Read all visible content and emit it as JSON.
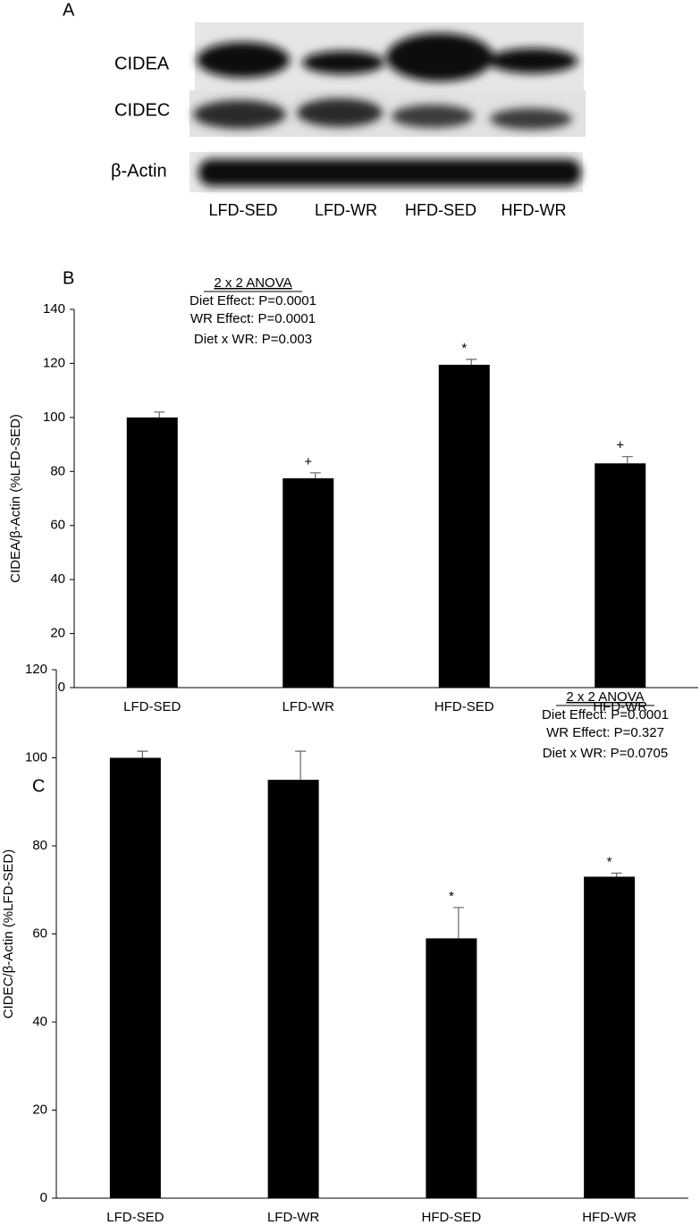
{
  "panel_a": {
    "label": "A",
    "rows": [
      "CIDEA",
      "CIDEC",
      "β-Actin"
    ],
    "lanes": [
      "LFD-SED",
      "LFD-WR",
      "HFD-SED",
      "HFD-WR"
    ]
  },
  "chart_data": [
    {
      "type": "bar",
      "panel": "B",
      "y_label": "CIDEA/β-Actin (%LFD-SED)",
      "annotation": {
        "title": "2 x 2 ANOVA",
        "lines": [
          "Diet Effect: P=0.0001",
          "WR Effect: P=0.0001",
          "Diet x WR: P=0.003"
        ]
      },
      "categories": [
        "LFD-SED",
        "LFD-WR",
        "HFD-SED",
        "HFD-WR"
      ],
      "values": [
        100,
        77.5,
        119.5,
        83
      ],
      "errors": [
        2,
        2,
        2,
        2.5
      ],
      "markers": [
        null,
        "+",
        "*",
        "+"
      ],
      "color": "#000000",
      "ylim": [
        0,
        140
      ],
      "yticks": [
        0,
        20,
        40,
        60,
        80,
        100,
        120,
        140
      ]
    },
    {
      "type": "bar",
      "panel": "C",
      "y_label": "CIDEC/β-Actin (%LFD-SED)",
      "annotation": {
        "title": "2 x 2 ANOVA",
        "lines": [
          "Diet Effect: P=0.0001",
          "WR Effect: P=0.327",
          "Diet x WR: P=0.0705"
        ]
      },
      "categories": [
        "LFD-SED",
        "LFD-WR",
        "HFD-SED",
        "HFD-WR"
      ],
      "values": [
        100,
        95,
        59,
        73
      ],
      "errors": [
        1.5,
        6.5,
        7,
        0.8
      ],
      "markers": [
        null,
        null,
        "*",
        "*"
      ],
      "color": "#000000",
      "ylim": [
        0,
        120
      ],
      "yticks": [
        0,
        20,
        40,
        60,
        80,
        100,
        120
      ]
    }
  ]
}
